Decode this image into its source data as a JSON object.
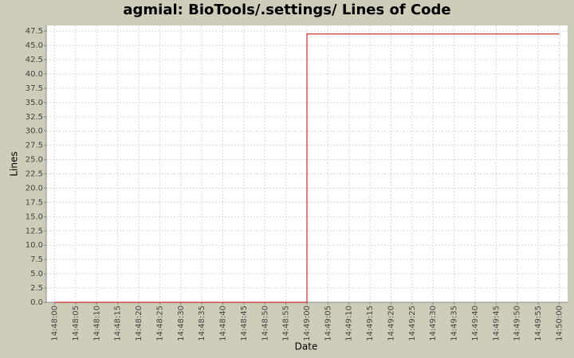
{
  "chart_data": {
    "type": "step",
    "title": "agmial: BioTools/.settings/ Lines of Code",
    "x_label": "Date",
    "y_label": "Lines",
    "x": [
      "14:48:00",
      "14:49:00",
      "14:50:00"
    ],
    "series": [
      {
        "name": "Lines",
        "color": "#c00000",
        "values": [
          0,
          47,
          47
        ]
      }
    ],
    "xlim": [
      "14:47:58",
      "14:50:02"
    ],
    "xticks": [
      "14:48:00",
      "14:48:05",
      "14:48:10",
      "14:48:15",
      "14:48:20",
      "14:48:25",
      "14:48:30",
      "14:48:35",
      "14:48:40",
      "14:48:45",
      "14:48:50",
      "14:48:55",
      "14:49:00",
      "14:49:05",
      "14:49:10",
      "14:49:15",
      "14:49:20",
      "14:49:25",
      "14:49:30",
      "14:49:35",
      "14:49:40",
      "14:49:45",
      "14:49:50",
      "14:49:55",
      "14:50:00"
    ],
    "ylim": [
      0,
      48.5
    ],
    "yticks": [
      {
        "value": 0,
        "label": "0.0"
      },
      2.5,
      {
        "value": 5,
        "label": "5.0"
      },
      7.5,
      {
        "value": 10,
        "label": "10.0"
      },
      12.5,
      {
        "value": 15,
        "label": "15.0"
      },
      17.5,
      {
        "value": 20,
        "label": "20.0"
      },
      22.5,
      {
        "value": 25,
        "label": "25.0"
      },
      27.5,
      {
        "value": 30,
        "label": "30.0"
      },
      32.5,
      {
        "value": 35,
        "label": "35.0"
      },
      37.5,
      {
        "value": 40,
        "label": "40.0"
      },
      42.5,
      {
        "value": 45,
        "label": "45.0"
      },
      47.5
    ],
    "grid": true
  }
}
